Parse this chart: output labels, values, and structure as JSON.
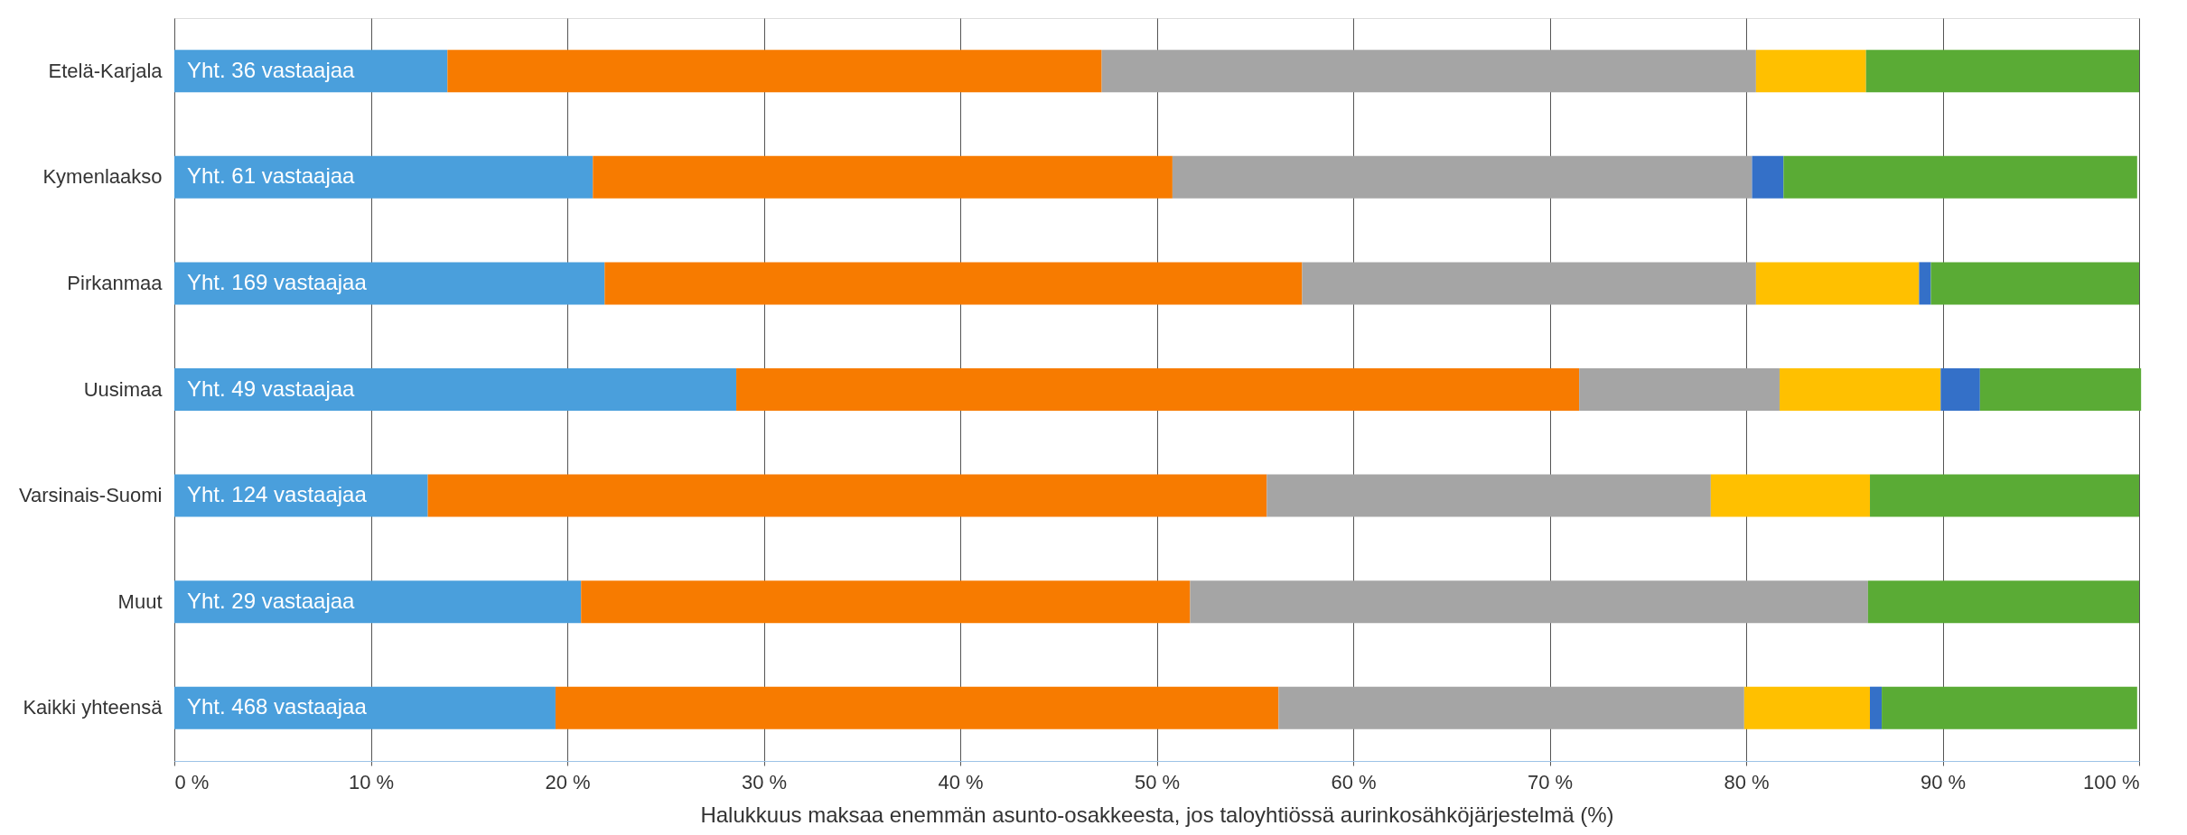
{
  "chart_data": {
    "type": "bar",
    "orientation": "horizontal",
    "stacked": true,
    "xlabel": "Halukkuus maksaa enemmän asunto-osakkeesta, jos taloyhtiössä aurinkosähköjärjestelmä (%)",
    "categories": [
      "Etelä-Karjala",
      "Kymenlaakso",
      "Pirkanmaa",
      "Uusimaa",
      "Varsinais-Suomi",
      "Muut",
      "Kaikki yhteensä"
    ],
    "series": [
      {
        "color": "#4a9fdc",
        "values": [
          13.9,
          21.3,
          21.9,
          28.6,
          12.9,
          20.7,
          19.4
        ]
      },
      {
        "color": "#f77b00",
        "values": [
          33.3,
          29.5,
          35.5,
          42.9,
          42.7,
          31.0,
          36.8
        ]
      },
      {
        "color": "#a5a5a5",
        "values": [
          33.3,
          29.5,
          23.1,
          10.2,
          22.6,
          34.5,
          23.7
        ]
      },
      {
        "color": "#ffc000",
        "values": [
          5.6,
          null,
          8.3,
          8.2,
          8.1,
          null,
          6.4
        ]
      },
      {
        "color": "#3470c8",
        "values": [
          null,
          1.6,
          0.6,
          2.0,
          null,
          null,
          0.6
        ]
      },
      {
        "color": "#5aab35",
        "values": [
          13.9,
          18.0,
          10.6,
          8.2,
          13.7,
          13.8,
          13.0
        ]
      }
    ],
    "xlim": [
      0,
      100
    ],
    "xticks": [
      {
        "value": 0,
        "label": "0 %"
      },
      {
        "value": 10,
        "label": "10 %"
      },
      {
        "value": 20,
        "label": "20 %"
      },
      {
        "value": 30,
        "label": "30 %"
      },
      {
        "value": 40,
        "label": "40 %"
      },
      {
        "value": 50,
        "label": "50 %"
      },
      {
        "value": 60,
        "label": "60 %"
      },
      {
        "value": 70,
        "label": "70 %"
      },
      {
        "value": 80,
        "label": "80 %"
      },
      {
        "value": 90,
        "label": "90 %"
      },
      {
        "value": 100,
        "label": "100 %"
      }
    ],
    "grid": "x",
    "legend": false,
    "annotations": [
      "Yht. 36 vastaajaa",
      "Yht. 61 vastaajaa",
      "Yht. 169 vastaajaa",
      "Yht. 49 vastaajaa",
      "Yht. 124 vastaajaa",
      "Yht. 29 vastaajaa",
      "Yht. 468 vastaajaa"
    ]
  }
}
